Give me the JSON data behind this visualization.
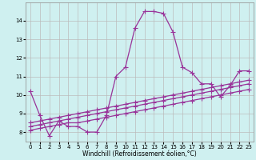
{
  "xlabel": "Windchill (Refroidissement éolien,°C)",
  "ylabel": "",
  "bg_color": "#cff0f0",
  "line_color": "#993399",
  "grid_color": "#bbbbbb",
  "xlim": [
    -0.5,
    23.5
  ],
  "ylim": [
    7.5,
    15.0
  ],
  "yticks": [
    8,
    9,
    10,
    11,
    12,
    13,
    14
  ],
  "xticks": [
    0,
    1,
    2,
    3,
    4,
    5,
    6,
    7,
    8,
    9,
    10,
    11,
    12,
    13,
    14,
    15,
    16,
    17,
    18,
    19,
    20,
    21,
    22,
    23
  ],
  "xtick_labels": [
    "0",
    "1",
    "2",
    "3",
    "4",
    "5",
    "6",
    "7",
    "8",
    "9",
    "10",
    "11",
    "12",
    "13",
    "14",
    "15",
    "16",
    "17",
    "18",
    "19",
    "20",
    "21",
    "22",
    "23"
  ],
  "series": [
    [
      10.2,
      8.9,
      7.8,
      8.6,
      8.3,
      8.3,
      8.0,
      8.0,
      8.9,
      11.0,
      11.5,
      13.6,
      14.5,
      14.5,
      14.4,
      13.4,
      11.5,
      11.2,
      10.6,
      10.6,
      9.9,
      10.5,
      11.3,
      11.3
    ],
    [
      8.1,
      8.2,
      8.3,
      8.4,
      8.5,
      8.5,
      8.6,
      8.7,
      8.8,
      8.9,
      9.0,
      9.1,
      9.2,
      9.3,
      9.4,
      9.5,
      9.6,
      9.7,
      9.8,
      9.9,
      10.0,
      10.1,
      10.2,
      10.3
    ],
    [
      8.3,
      8.4,
      8.5,
      8.6,
      8.7,
      8.8,
      8.9,
      9.0,
      9.1,
      9.2,
      9.3,
      9.4,
      9.5,
      9.6,
      9.7,
      9.8,
      9.9,
      10.0,
      10.1,
      10.2,
      10.3,
      10.4,
      10.5,
      10.6
    ],
    [
      8.5,
      8.6,
      8.7,
      8.8,
      8.9,
      9.0,
      9.1,
      9.2,
      9.3,
      9.4,
      9.5,
      9.6,
      9.7,
      9.8,
      9.9,
      10.0,
      10.1,
      10.2,
      10.3,
      10.4,
      10.5,
      10.6,
      10.7,
      10.8
    ]
  ],
  "marker": "+",
  "markersize": 4,
  "linewidth": 0.9,
  "axis_fontsize": 5.5,
  "tick_fontsize": 5.0
}
